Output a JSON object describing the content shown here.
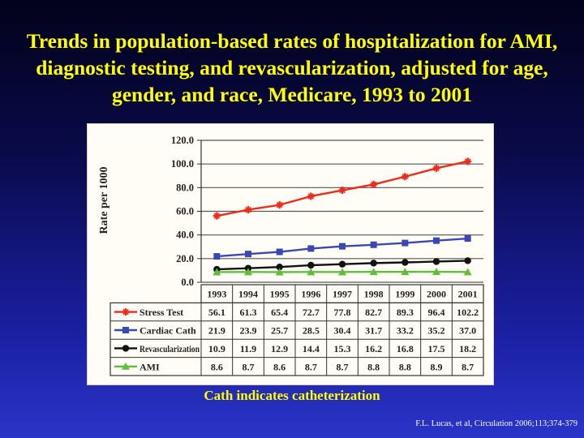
{
  "slide": {
    "title": "Trends in population-based rates of hospitalization for AMI, diagnostic testing, and revascularization, adjusted for age, gender, and race, Medicare, 1993 to 2001",
    "caption": "Cath indicates catheterization",
    "citation": "F.L. Lucas, et al, Circulation 2006;113;374-379"
  },
  "chart_data": {
    "type": "line",
    "title": "",
    "xlabel": "",
    "ylabel": "Rate per 1000",
    "ylim": [
      0,
      120
    ],
    "yticks": [
      "120.0",
      "100.0",
      "80.0",
      "60.0",
      "40.0",
      "20.0",
      "0.0"
    ],
    "categories": [
      "1993",
      "1994",
      "1995",
      "1996",
      "1997",
      "1998",
      "1999",
      "2000",
      "2001"
    ],
    "grid": true,
    "legend": "data table below chart",
    "series": [
      {
        "name": "Stress Test",
        "color": "#ee2b1b",
        "marker": "star",
        "values": [
          56.1,
          61.3,
          65.4,
          72.7,
          77.8,
          82.7,
          89.3,
          96.4,
          102.2
        ],
        "labels": [
          "56.1",
          "61.3",
          "65.4",
          "72.7",
          "77.8",
          "82.7",
          "89.3",
          "96.4",
          "102.2"
        ]
      },
      {
        "name": "Cardiac Cath",
        "color": "#3a48b4",
        "marker": "square",
        "values": [
          21.9,
          23.9,
          25.7,
          28.5,
          30.4,
          31.7,
          33.2,
          35.2,
          37.0
        ],
        "labels": [
          "21.9",
          "23.9",
          "25.7",
          "28.5",
          "30.4",
          "31.7",
          "33.2",
          "35.2",
          "37.0"
        ]
      },
      {
        "name": "Revascularization",
        "color": "#111111",
        "marker": "circle",
        "values": [
          10.9,
          11.9,
          12.9,
          14.4,
          15.3,
          16.2,
          16.8,
          17.5,
          18.2
        ],
        "labels": [
          "10.9",
          "11.9",
          "12.9",
          "14.4",
          "15.3",
          "16.2",
          "16.8",
          "17.5",
          "18.2"
        ]
      },
      {
        "name": "AMI",
        "color": "#5fbf3a",
        "marker": "triangle",
        "values": [
          8.6,
          8.7,
          8.6,
          8.7,
          8.7,
          8.8,
          8.8,
          8.9,
          8.7
        ],
        "labels": [
          "8.6",
          "8.7",
          "8.6",
          "8.7",
          "8.7",
          "8.8",
          "8.8",
          "8.9",
          "8.7"
        ]
      }
    ]
  }
}
